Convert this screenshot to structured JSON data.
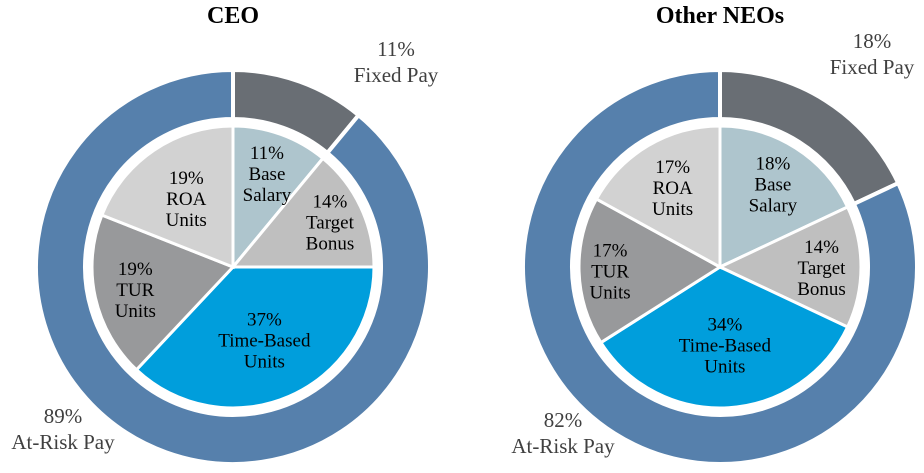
{
  "figure_name": "Executive pay mix donut charts",
  "units": "%",
  "text_colors": {
    "inner_labels": "#000000",
    "outer_labels": "#404040",
    "titles": "#000000"
  },
  "chart_data": [
    {
      "type": "pie",
      "variant": "donut-ring-with-inner-pie",
      "title": "CEO",
      "layout": {
        "start_angle_deg": 0,
        "direction": "clockwise",
        "legend": "none",
        "grid": false
      },
      "outer_ring": {
        "segments": [
          {
            "label": "Fixed Pay",
            "value_pct": 11,
            "color": "#696E74"
          },
          {
            "label": "At-Risk Pay",
            "value_pct": 89,
            "color": "#5680AC"
          }
        ]
      },
      "inner_pie": {
        "segments": [
          {
            "label": "Base Salary",
            "value_pct": 11,
            "color": "#AEC5CD",
            "label_lines": [
              "11%",
              "Base",
              "Salary"
            ],
            "label_radius_frac": 0.71
          },
          {
            "label": "Target Bonus",
            "value_pct": 14,
            "color": "#BFBFBF",
            "label_lines": [
              "14%",
              "Target",
              "Bonus"
            ],
            "label_radius_frac": 0.76
          },
          {
            "label": "Time-Based Units",
            "value_pct": 37,
            "color": "#009EDC",
            "label_lines": [
              "37%",
              "Time-Based",
              "Units"
            ],
            "label_radius_frac": 0.56
          },
          {
            "label": "TUR Units",
            "value_pct": 19,
            "color": "#98999B",
            "label_lines": [
              "19%",
              "TUR",
              "Units"
            ],
            "label_radius_frac": 0.71
          },
          {
            "label": "ROA Units",
            "value_pct": 19,
            "color": "#D2D2D2",
            "label_lines": [
              "19%",
              "ROA",
              "Units"
            ],
            "label_radius_frac": 0.59
          }
        ]
      },
      "outer_labels": {
        "fixed": {
          "pct": "11%",
          "text": "Fixed Pay"
        },
        "at_risk": {
          "pct": "89%",
          "text": "At-Risk Pay"
        }
      }
    },
    {
      "type": "pie",
      "variant": "donut-ring-with-inner-pie",
      "title": "Other NEOs",
      "layout": {
        "start_angle_deg": 0,
        "direction": "clockwise",
        "legend": "none",
        "grid": false
      },
      "outer_ring": {
        "segments": [
          {
            "label": "Fixed Pay",
            "value_pct": 18,
            "color": "#696E74"
          },
          {
            "label": "At-Risk Pay",
            "value_pct": 82,
            "color": "#5680AC"
          }
        ]
      },
      "inner_pie": {
        "segments": [
          {
            "label": "Base Salary",
            "value_pct": 18,
            "color": "#AEC5CD",
            "label_lines": [
              "18%",
              "Base",
              "Salary"
            ],
            "label_radius_frac": 0.7
          },
          {
            "label": "Target Bonus",
            "value_pct": 14,
            "color": "#BFBFBF",
            "label_lines": [
              "14%",
              "Target",
              "Bonus"
            ],
            "label_radius_frac": 0.72
          },
          {
            "label": "Time-Based Units",
            "value_pct": 34,
            "color": "#009EDC",
            "label_lines": [
              "34%",
              "Time-Based",
              "Units"
            ],
            "label_radius_frac": 0.55
          },
          {
            "label": "TUR Units",
            "value_pct": 17,
            "color": "#98999B",
            "label_lines": [
              "17%",
              "TUR",
              "Units"
            ],
            "label_radius_frac": 0.78
          },
          {
            "label": "ROA Units",
            "value_pct": 17,
            "color": "#D2D2D2",
            "label_lines": [
              "17%",
              "ROA",
              "Units"
            ],
            "label_radius_frac": 0.66
          }
        ]
      },
      "outer_labels": {
        "fixed": {
          "pct": "18%",
          "text": "Fixed Pay"
        },
        "at_risk": {
          "pct": "82%",
          "text": "At-Risk Pay"
        }
      }
    }
  ]
}
